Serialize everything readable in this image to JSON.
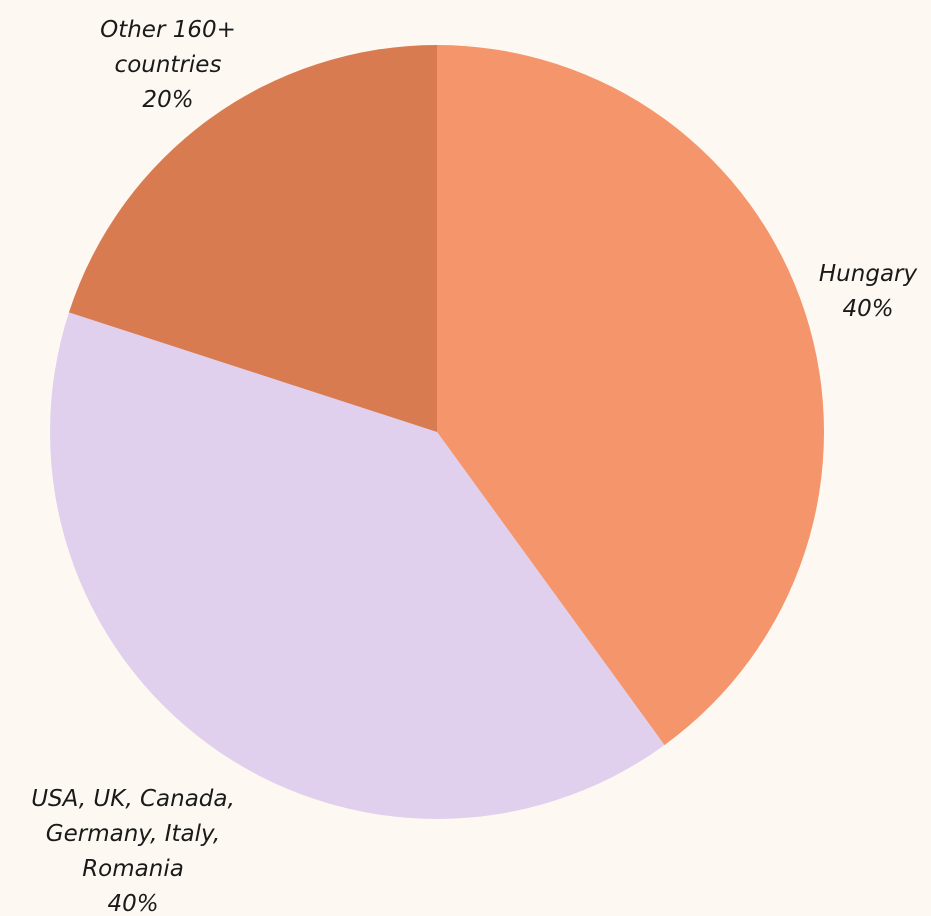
{
  "chart_data": {
    "type": "pie",
    "categories": [
      "Hungary",
      "USA, UK, Canada,\nGermany, Italy,\nRomania",
      "Other 160+\ncountries"
    ],
    "values": [
      40,
      40,
      20
    ],
    "value_labels": [
      "40%",
      "40%",
      "20%"
    ],
    "colors": [
      "#f5956b",
      "#e0d0ee",
      "#d87b50"
    ]
  }
}
